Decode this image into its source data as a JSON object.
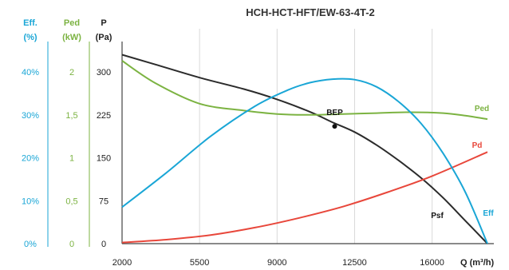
{
  "chart_data": {
    "type": "line",
    "title": "HCH-HCT-HFT/EW-63-4T-2",
    "xlabel": "Q (m³/h)",
    "x_ticks": [
      "2000",
      "5500",
      "9000",
      "12500",
      "16000"
    ],
    "xlim": [
      2000,
      18500
    ],
    "axes": [
      {
        "id": "eff",
        "title_line1": "Eff.",
        "title_line2": "(%)",
        "ticks": [
          "40%",
          "30%",
          "20%",
          "10%",
          "0%"
        ],
        "range": [
          0,
          40
        ],
        "color": "#1aa6d6"
      },
      {
        "id": "ped",
        "title_line1": "Ped",
        "title_line2": "(kW)",
        "ticks": [
          "2",
          "1,5",
          "1",
          "0,5",
          "0"
        ],
        "range": [
          0,
          2
        ],
        "color": "#7cb342"
      },
      {
        "id": "p",
        "title_line1": "P",
        "title_line2": "(Pa)",
        "ticks": [
          "300",
          "225",
          "150",
          "75",
          "0"
        ],
        "range": [
          0,
          300
        ],
        "color": "#222222"
      }
    ],
    "series": [
      {
        "name": "Psf",
        "axis": "p",
        "color": "#2b2b2b",
        "x": [
          2000,
          3500,
          5500,
          7500,
          9000,
          10500,
          11500,
          12500,
          13500,
          14500,
          15500,
          16500,
          17500,
          18500
        ],
        "y": [
          330,
          313,
          290,
          270,
          252,
          230,
          212,
          195,
          172,
          145,
          115,
          80,
          40,
          0
        ]
      },
      {
        "name": "Pd",
        "axis": "p",
        "color": "#e8473b",
        "x": [
          2000,
          4000,
          6000,
          8000,
          10000,
          12000,
          14000,
          16000,
          18500
        ],
        "y": [
          2,
          7,
          15,
          28,
          45,
          65,
          90,
          118,
          160
        ]
      },
      {
        "name": "Ped",
        "axis": "ped",
        "color": "#7cb342",
        "x": [
          2000,
          3500,
          5500,
          7500,
          9000,
          10500,
          12000,
          13500,
          15000,
          16500,
          17500,
          18500
        ],
        "y": [
          2.13,
          1.87,
          1.63,
          1.55,
          1.51,
          1.5,
          1.51,
          1.52,
          1.53,
          1.52,
          1.49,
          1.45
        ]
      },
      {
        "name": "Eff",
        "axis": "eff",
        "color": "#1aa6d6",
        "x": [
          2000,
          4000,
          6000,
          8000,
          9500,
          10500,
          11500,
          12500,
          13500,
          14500,
          15500,
          16500,
          17500,
          18500
        ],
        "y": [
          8.5,
          16.5,
          25,
          32,
          35.8,
          37.5,
          38.3,
          38.2,
          36.5,
          33,
          28,
          21,
          12,
          0
        ]
      }
    ],
    "bep": {
      "label": "BEP",
      "x": 11600,
      "y": 205,
      "axis": "p"
    },
    "grid": "vertical"
  }
}
